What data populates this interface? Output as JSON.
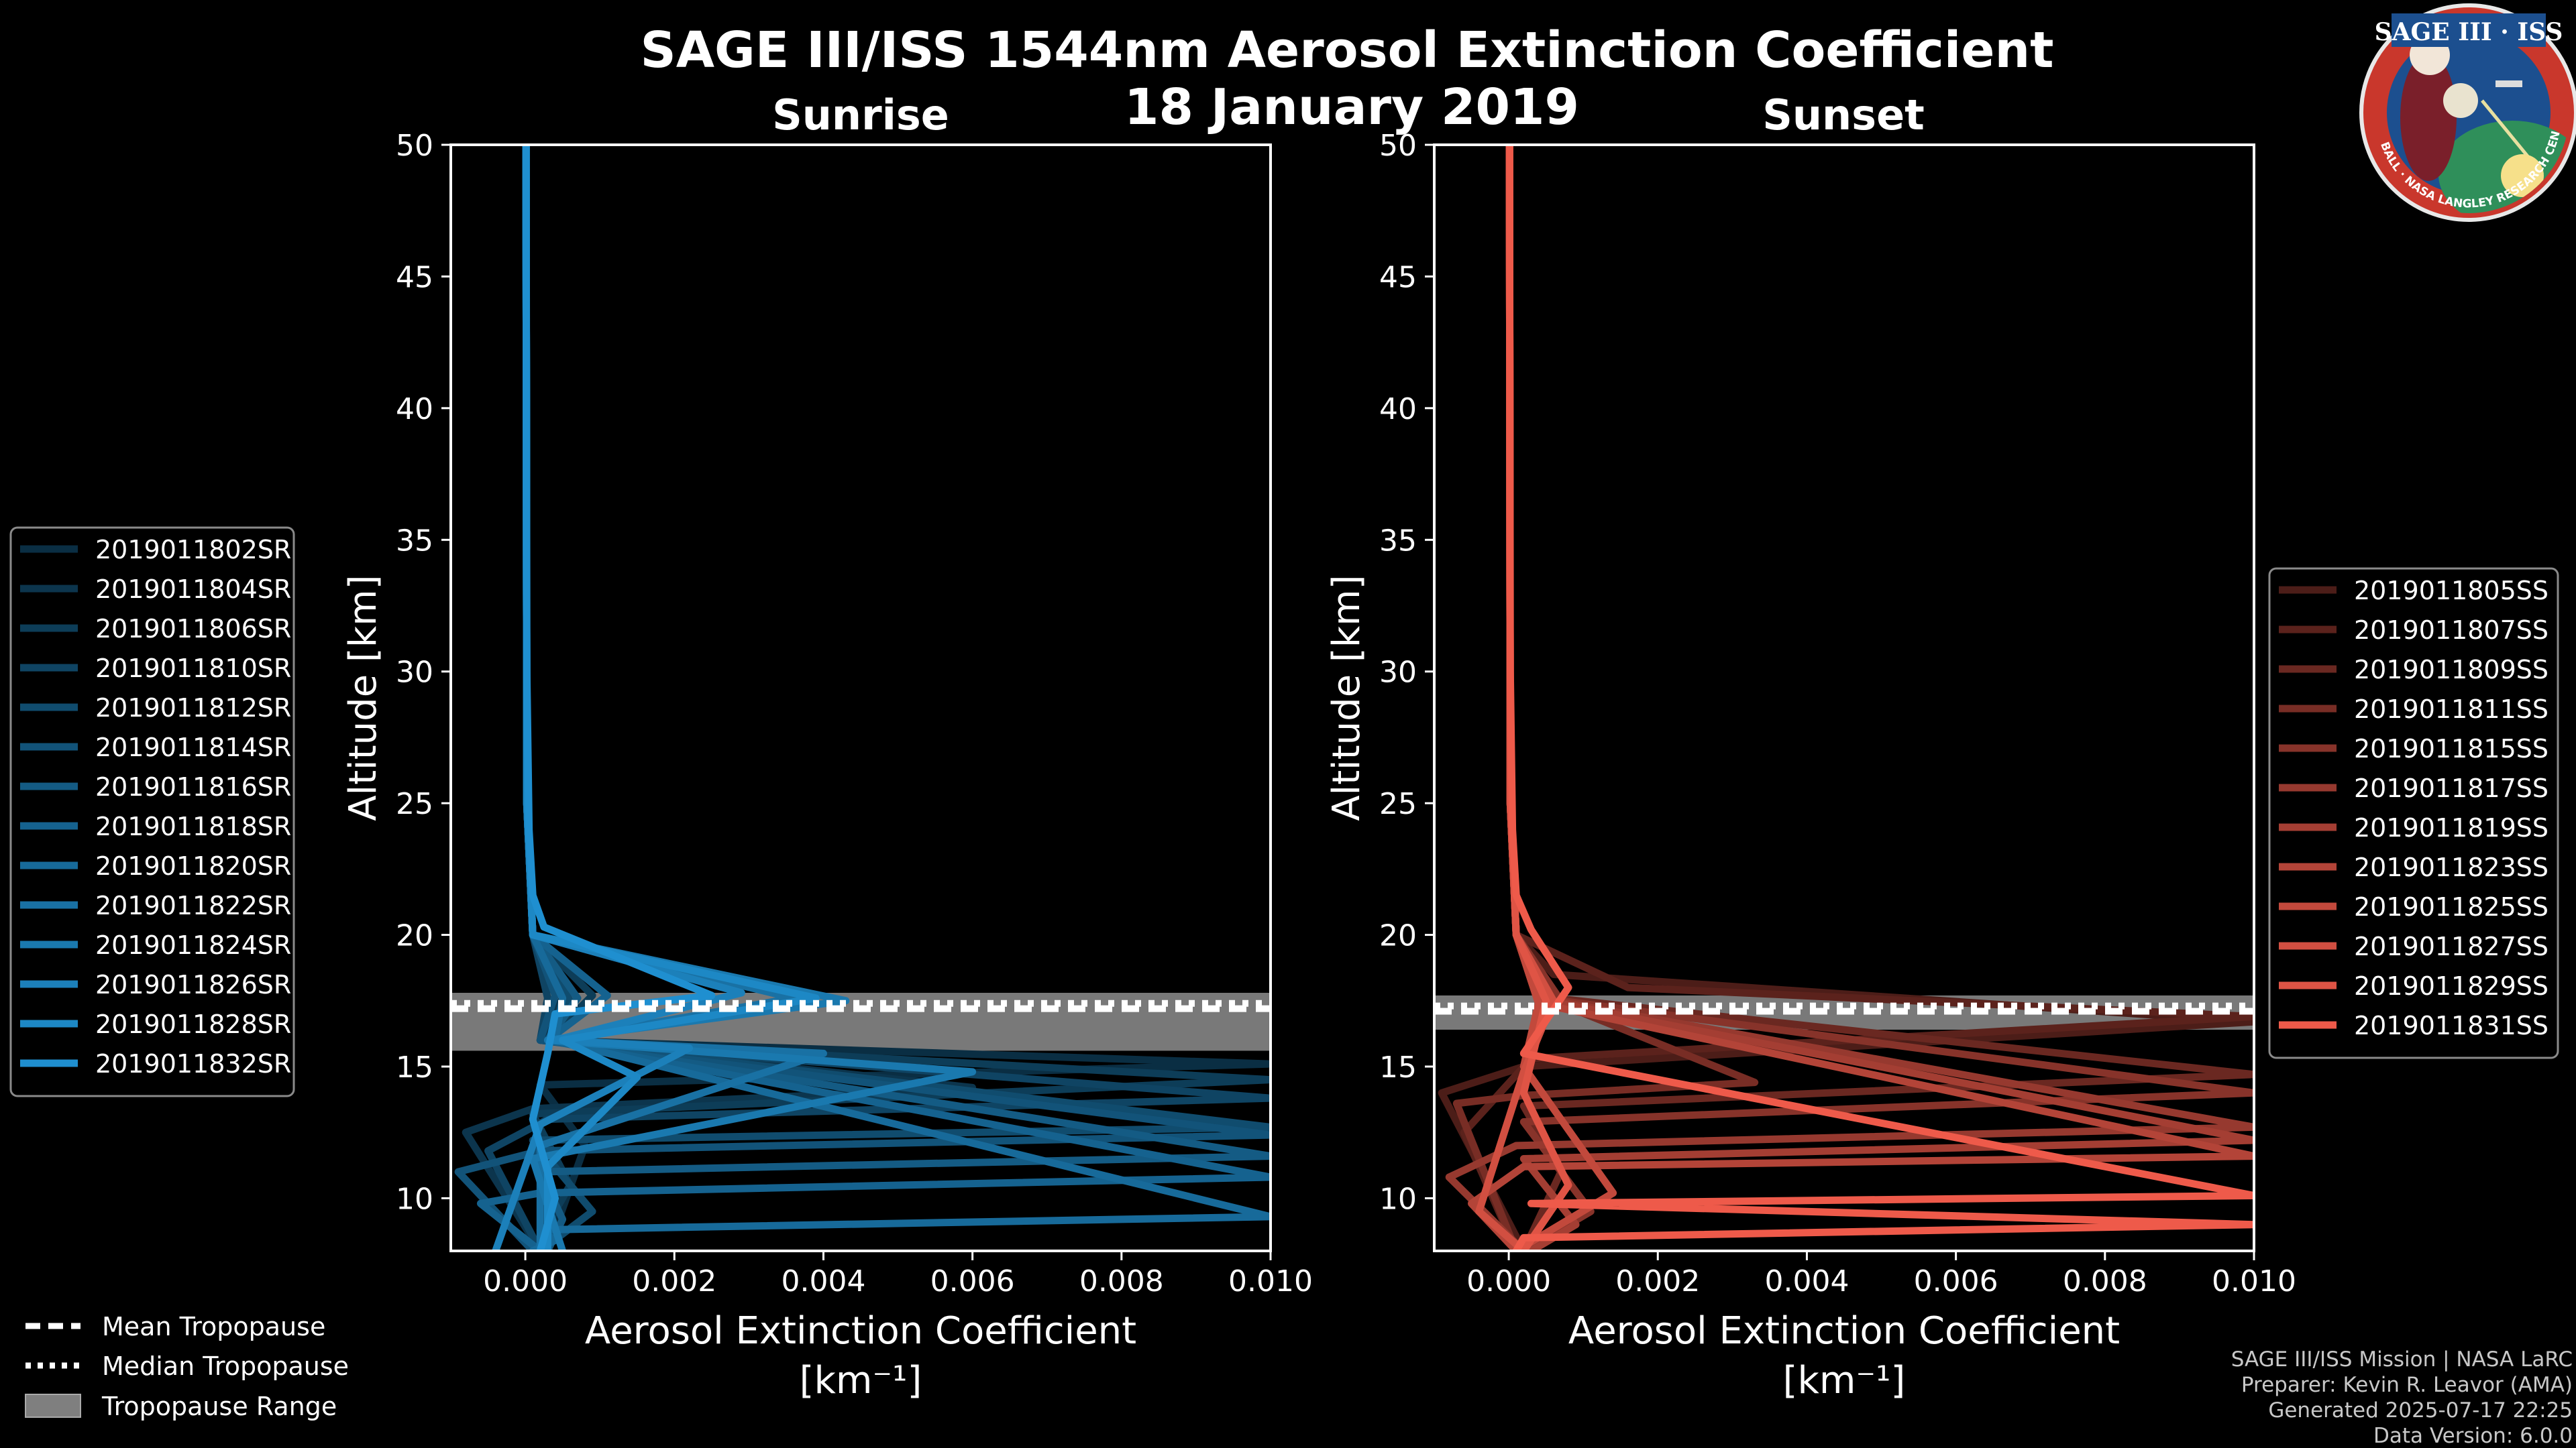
{
  "title": "SAGE III/ISS 1544nm Aerosol Extinction Coefficient",
  "date": "18 January 2019",
  "logo": {
    "text": "SAGE III · ISS",
    "ring_text": "BALL · NASA LANGLEY RESEARCH CENTER · TAS · ESA"
  },
  "credits": [
    "SAGE III/ISS Mission | NASA LaRC",
    "Preparer: Kevin R. Leavor (AMA)",
    "Generated 2025-07-17 22:25",
    "Data Version: 6.0.0"
  ],
  "common_legend": {
    "mean": "Mean Tropopause",
    "median": "Median Tropopause",
    "range": "Tropopause Range"
  },
  "colors": {
    "sunrise": "#1f8fd0",
    "sunset": "#ee5a4a",
    "tropo_band": "#7f7f7f"
  },
  "chart_data": [
    {
      "type": "line",
      "title": "Sunrise",
      "xlabel": "Aerosol Extinction Coefficient",
      "xunit": "[km⁻¹]",
      "ylabel": "Altitude [km]",
      "xlim": [
        -0.001,
        0.01
      ],
      "ylim": [
        8,
        50
      ],
      "xticks": [
        "0.000",
        "0.002",
        "0.004",
        "0.006",
        "0.008",
        "0.010"
      ],
      "xtick_values": [
        0,
        0.002,
        0.004,
        0.006,
        0.008,
        0.01
      ],
      "yticks": [
        10,
        15,
        20,
        25,
        30,
        35,
        40,
        45,
        50
      ],
      "tropopause": {
        "mean": 17.2,
        "median": 17.4,
        "range": [
          15.6,
          17.8
        ]
      },
      "series": [
        {
          "name": "2019011802SR",
          "x": [
            1e-05,
            2e-05,
            0.0001,
            0.0005,
            0.0003,
            0.01,
            0.0002,
            0.0008,
            0.0003
          ],
          "y": [
            50,
            25,
            20,
            17.6,
            16,
            15.1,
            14.3,
            12,
            8
          ]
        },
        {
          "name": "2019011804SR",
          "x": [
            1e-05,
            2e-05,
            0.0001,
            0.0005,
            0.0002,
            0.006,
            0.0001,
            -0.0008,
            0.0002
          ],
          "y": [
            50,
            25,
            20,
            17.6,
            16,
            14.2,
            13.4,
            12.5,
            8
          ]
        },
        {
          "name": "2019011806SR",
          "x": [
            1e-05,
            2e-05,
            0.0001,
            0.0009,
            0.0003,
            0.01,
            0.0001,
            0.0006,
            0.0001
          ],
          "y": [
            50,
            25,
            20,
            17.7,
            16,
            14.5,
            13.2,
            10.5,
            8
          ]
        },
        {
          "name": "2019011810SR",
          "x": [
            1e-05,
            2e-05,
            0.0001,
            0.0003,
            0.0002,
            0.01,
            0.0003,
            -0.0005,
            0.0002
          ],
          "y": [
            50,
            25,
            20,
            17.6,
            16,
            13.8,
            13,
            11.8,
            8
          ]
        },
        {
          "name": "2019011812SR",
          "x": [
            1e-05,
            2e-05,
            0.0001,
            0.0006,
            0.0003,
            0.01,
            0.0001,
            0.0009,
            0.0002
          ],
          "y": [
            50,
            25,
            20,
            17.5,
            16,
            12.7,
            12.2,
            9.5,
            8
          ]
        },
        {
          "name": "2019011814SR",
          "x": [
            1e-05,
            2e-05,
            0.0001,
            0.0004,
            0.0002,
            0.01,
            0.0002,
            -0.0009,
            0.0001
          ],
          "y": [
            50,
            25,
            20,
            17.7,
            16,
            12.4,
            11.8,
            11,
            8
          ]
        },
        {
          "name": "2019011816SR",
          "x": [
            1e-05,
            2e-05,
            0.0001,
            0.0007,
            0.0003,
            0.01,
            0.0002,
            0.0005,
            0.0003
          ],
          "y": [
            50,
            25,
            20,
            17.6,
            16,
            11.6,
            11,
            9.2,
            8
          ]
        },
        {
          "name": "2019011818SR",
          "x": [
            1e-05,
            2e-05,
            0.0001,
            0.0011,
            0.0003,
            0.01,
            0.0002,
            -0.0006,
            0.0002
          ],
          "y": [
            50,
            25,
            20,
            17.7,
            16,
            10.8,
            10.2,
            9.8,
            8
          ]
        },
        {
          "name": "2019011820SR",
          "x": [
            1e-05,
            2e-05,
            0.0001,
            0.0005,
            0.0004,
            0.01,
            0.0002,
            0.0004,
            0.0001
          ],
          "y": [
            50,
            25,
            20,
            17.6,
            16,
            9.3,
            8.8,
            8.4,
            8
          ]
        },
        {
          "name": "2019011822SR",
          "x": [
            1e-05,
            2e-05,
            0.0001,
            0.0036,
            0.0004,
            0.004,
            0.0002,
            0.0002
          ],
          "y": [
            50,
            25,
            20,
            17.6,
            16,
            15.5,
            12,
            8
          ]
        },
        {
          "name": "2019011824SR",
          "x": [
            1e-05,
            2e-05,
            0.0001,
            0.0043,
            0.0003,
            0.006,
            0.0001,
            0.0005
          ],
          "y": [
            50,
            25,
            20,
            17.5,
            16,
            14.8,
            11.5,
            8
          ]
        },
        {
          "name": "2019011826SR",
          "x": [
            1e-05,
            2e-05,
            0.0001,
            0.0029,
            0.0004,
            0.0022,
            0.0002,
            -0.0004
          ],
          "y": [
            50,
            25,
            20,
            17.8,
            16,
            15.7,
            12.8,
            8
          ]
        },
        {
          "name": "2019011828SR",
          "x": [
            1e-05,
            2e-05,
            0.0001,
            0.0039,
            0.0005,
            0.0015,
            0.0003,
            0.0003
          ],
          "y": [
            50,
            25,
            20,
            17.6,
            16,
            14.6,
            11.2,
            8
          ]
        },
        {
          "name": "2019011832SR",
          "x": [
            1e-05,
            2e-05,
            5e-05,
            0.0001,
            0.00025,
            0.0025,
            0.0004,
            0.0003,
            0.0001,
            0.0004,
            0.0002
          ],
          "y": [
            50,
            30,
            24,
            21.5,
            20.3,
            17.7,
            17,
            15.5,
            13,
            10,
            8
          ]
        }
      ]
    },
    {
      "type": "line",
      "title": "Sunset",
      "xlabel": "Aerosol Extinction Coefficient",
      "xunit": "[km⁻¹]",
      "ylabel": "Altitude [km]",
      "xlim": [
        -0.001,
        0.01
      ],
      "ylim": [
        8,
        50
      ],
      "xticks": [
        "0.000",
        "0.002",
        "0.004",
        "0.006",
        "0.008",
        "0.010"
      ],
      "xtick_values": [
        0,
        0.002,
        0.004,
        0.006,
        0.008,
        0.01
      ],
      "yticks": [
        10,
        15,
        20,
        25,
        30,
        35,
        40,
        45,
        50
      ],
      "tropopause": {
        "mean": 17.1,
        "median": 17.3,
        "range": [
          16.4,
          17.7
        ]
      },
      "series": [
        {
          "name": "2019011805SS",
          "x": [
            1e-05,
            2e-05,
            0.0001,
            0.0006,
            0.01,
            0.0002,
            -0.0009,
            0.0002
          ],
          "y": [
            50,
            25,
            20,
            18.5,
            16.7,
            15,
            14,
            8
          ]
        },
        {
          "name": "2019011807SS",
          "x": [
            1e-05,
            2e-05,
            0.0001,
            0.0016,
            0.01,
            0.0003,
            -0.0006,
            0.0001
          ],
          "y": [
            50,
            25,
            20,
            18,
            16.9,
            15.3,
            12.5,
            8
          ]
        },
        {
          "name": "2019011809SS",
          "x": [
            1e-05,
            2e-05,
            0.0001,
            0.0006,
            0.01,
            0.0002,
            0.0007,
            0.0002
          ],
          "y": [
            50,
            25,
            20,
            17.6,
            14.7,
            13.5,
            11,
            8
          ]
        },
        {
          "name": "2019011811SS",
          "x": [
            1e-05,
            2e-05,
            0.0001,
            0.0005,
            0.0033,
            0.0002,
            -0.0007,
            0.0001
          ],
          "y": [
            50,
            25,
            20,
            17.6,
            14.4,
            13.9,
            13.6,
            8
          ]
        },
        {
          "name": "2019011815SS",
          "x": [
            1e-05,
            2e-05,
            0.0001,
            0.0007,
            0.01,
            0.0002,
            0.0011,
            0.0002
          ],
          "y": [
            50,
            25,
            20,
            17.5,
            14,
            12.9,
            9.5,
            8
          ]
        },
        {
          "name": "2019011817SS",
          "x": [
            1e-05,
            2e-05,
            0.0001,
            0.0004,
            0.01,
            0.0001,
            -0.0008,
            0.0002
          ],
          "y": [
            50,
            25,
            20,
            17.6,
            12.7,
            12,
            10.8,
            8
          ]
        },
        {
          "name": "2019011819SS",
          "x": [
            1e-05,
            2e-05,
            0.0001,
            0.0005,
            0.01,
            0.0002,
            0.0009,
            0.0003
          ],
          "y": [
            50,
            25,
            20,
            17.5,
            12.2,
            11.5,
            9,
            8
          ]
        },
        {
          "name": "2019011823SS",
          "x": [
            1e-05,
            2e-05,
            0.0001,
            0.0004,
            0.01,
            0.0002,
            -0.0005,
            0.0001
          ],
          "y": [
            50,
            25,
            20,
            17.4,
            11.6,
            11.2,
            9.8,
            8
          ]
        },
        {
          "name": "2019011825SS",
          "x": [
            1e-05,
            2e-05,
            0.0001,
            0.0004,
            0.0002,
            0.0014,
            0.0001
          ],
          "y": [
            50,
            25,
            20,
            17.4,
            15,
            10.2,
            8
          ]
        },
        {
          "name": "2019011827SS",
          "x": [
            1e-05,
            2e-05,
            0.0001,
            0.0006,
            0.0002,
            -0.0004,
            0.0002
          ],
          "y": [
            50,
            25,
            20,
            17.5,
            14.8,
            9.5,
            8
          ]
        },
        {
          "name": "2019011829SS",
          "x": [
            1e-05,
            2e-05,
            0.0001,
            0.0005,
            0.0002,
            0.0008,
            0.0002
          ],
          "y": [
            50,
            25,
            20,
            17.5,
            14,
            10.5,
            8
          ]
        },
        {
          "name": "2019011831SS",
          "x": [
            1e-05,
            2e-05,
            5e-05,
            0.0001,
            0.0003,
            0.0008,
            0.0002,
            0.01,
            0.0003,
            0.01,
            0.0002,
            0.0001
          ],
          "y": [
            50,
            30,
            24,
            21.5,
            20.2,
            18,
            15.5,
            10.1,
            9.8,
            9,
            8.5,
            8
          ]
        }
      ]
    }
  ]
}
